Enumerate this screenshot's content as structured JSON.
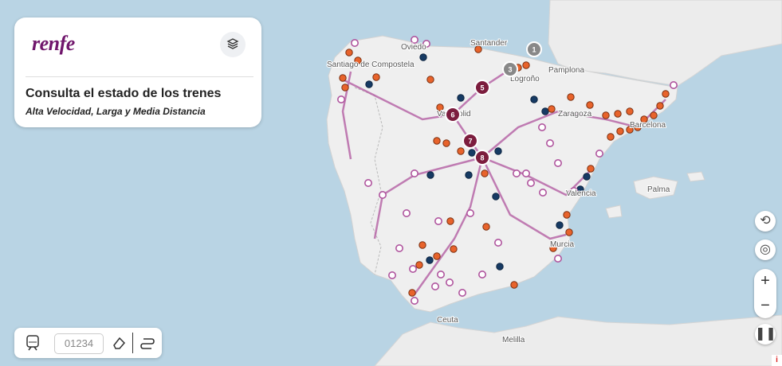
{
  "header": {
    "logo": "renfe",
    "title": "Consulta el estado de los trenes",
    "subtitle": "Alta Velocidad, Larga y Media Distancia"
  },
  "search": {
    "placeholder": "01234"
  },
  "map": {
    "cities": [
      "Santander",
      "Oviedo",
      "Santiago de Compostela",
      "Logroño",
      "Pamplona",
      "Valladolid",
      "Zaragoza",
      "Barcelona",
      "Valencia",
      "Palma",
      "Murcia",
      "Ceuta",
      "Melilla"
    ],
    "clusters": [
      "1",
      "3",
      "5",
      "6",
      "7",
      "8"
    ]
  },
  "controls": {
    "zoom_in": "+",
    "zoom_out": "−",
    "info": "i"
  }
}
